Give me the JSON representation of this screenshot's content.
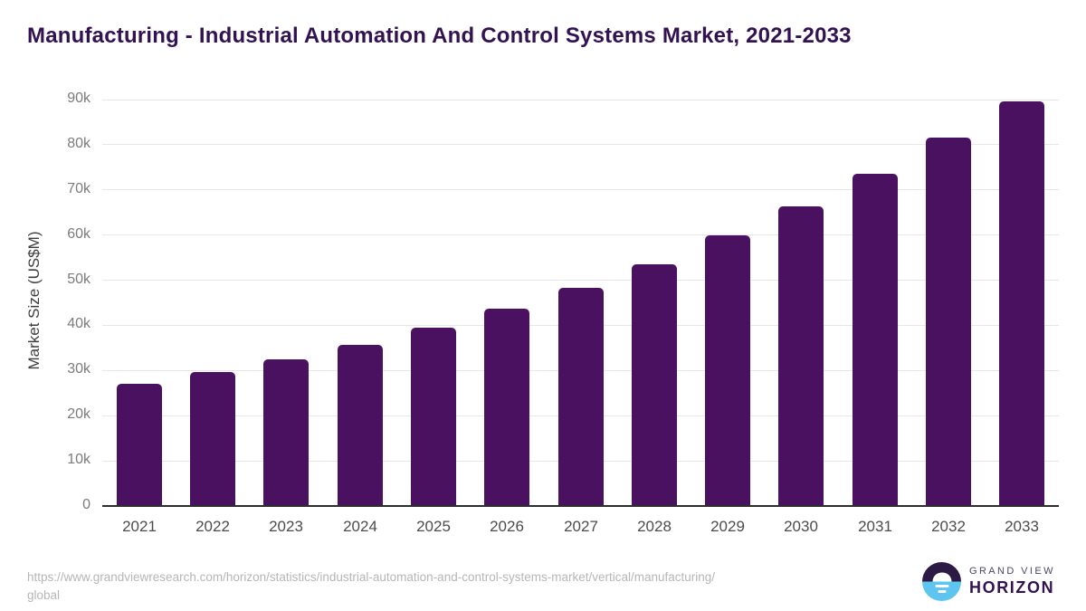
{
  "title": "Manufacturing - Industrial Automation And Control Systems Market, 2021-2033",
  "chart_data": {
    "type": "bar",
    "title": "Manufacturing - Industrial Automation And Control Systems Market, 2021-2033",
    "categories": [
      "2021",
      "2022",
      "2023",
      "2024",
      "2025",
      "2026",
      "2027",
      "2028",
      "2029",
      "2030",
      "2031",
      "2032",
      "2033"
    ],
    "values": [
      27100,
      29600,
      32400,
      35700,
      39400,
      43600,
      48400,
      53600,
      59900,
      66400,
      73600,
      81500,
      89600
    ],
    "unit": "US$M",
    "xlabel": "",
    "ylabel": "Market Size (US$M)",
    "ylim": [
      0,
      90000
    ],
    "yticks": [
      {
        "value": 0,
        "label": "0"
      },
      {
        "value": 10000,
        "label": "10k"
      },
      {
        "value": 20000,
        "label": "20k"
      },
      {
        "value": 30000,
        "label": "30k"
      },
      {
        "value": 40000,
        "label": "40k"
      },
      {
        "value": 50000,
        "label": "50k"
      },
      {
        "value": 60000,
        "label": "60k"
      },
      {
        "value": 70000,
        "label": "70k"
      },
      {
        "value": 80000,
        "label": "80k"
      },
      {
        "value": 90000,
        "label": "90k"
      }
    ],
    "grid": true,
    "legend": false,
    "bar_color": "#4a1161"
  },
  "footer": {
    "source_line1": "https://www.grandviewresearch.com/horizon/statistics/industrial-automation-and-control-systems-market/vertical/manufacturing/",
    "source_line2": "global"
  },
  "logo": {
    "line1": "GRAND VIEW",
    "line2": "HORIZON",
    "icon": "sunrise-horizon-icon",
    "color_top": "#2c1a45",
    "color_bottom": "#5ec5f0"
  },
  "colors": {
    "title": "#331251",
    "bar": "#4a1161",
    "gridline": "#e7e7e7",
    "axis_line": "#2d2d2d",
    "y_tick_text": "#7b7b7b",
    "x_tick_text": "#4c4c4c",
    "source_text": "#b6b6b6"
  }
}
